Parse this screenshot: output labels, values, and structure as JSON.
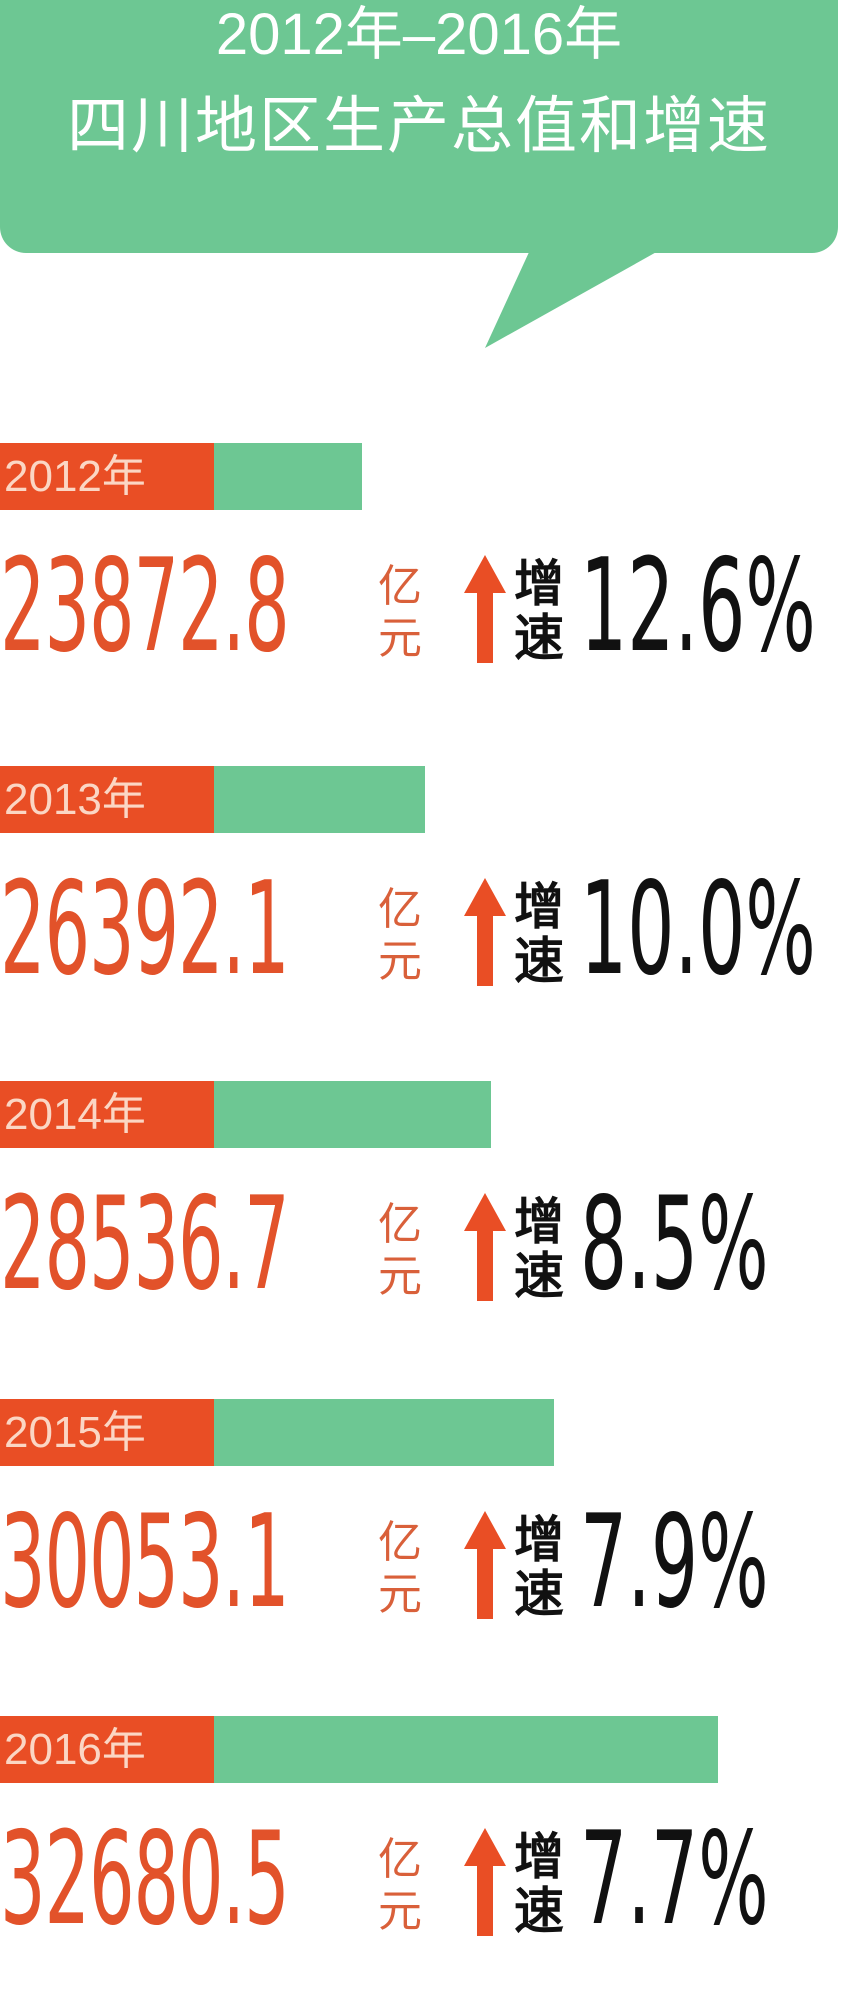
{
  "header": {
    "title_line1": "2012年–2016年",
    "title_line2": "四川地区生产总值和增速"
  },
  "colors": {
    "green": "#6dc793",
    "orange": "#e94e25",
    "text_dark": "#111111"
  },
  "chart_data": {
    "type": "bar",
    "title": "2012年–2016年 四川地区生产总值和增速",
    "categories": [
      "2012年",
      "2013年",
      "2014年",
      "2015年",
      "2016年"
    ],
    "series": [
      {
        "values": [
          23872.8,
          26392.1,
          28536.7,
          30053.1,
          32680.5
        ],
        "unit": "亿元"
      },
      {
        "values": [
          12.6,
          10.0,
          8.5,
          7.9,
          7.7
        ],
        "unit": "%",
        "label": "增速"
      }
    ]
  },
  "rows": [
    {
      "year": "2012年",
      "value": "23872.8",
      "unit_top": "亿",
      "unit_bottom": "元",
      "growth_top": "增",
      "growth_bottom": "速",
      "growth": "12.6%"
    },
    {
      "year": "2013年",
      "value": "26392.1",
      "unit_top": "亿",
      "unit_bottom": "元",
      "growth_top": "增",
      "growth_bottom": "速",
      "growth": "10.0%"
    },
    {
      "year": "2014年",
      "value": "28536.7",
      "unit_top": "亿",
      "unit_bottom": "元",
      "growth_top": "增",
      "growth_bottom": "速",
      "growth": "8.5%"
    },
    {
      "year": "2015年",
      "value": "30053.1",
      "unit_top": "亿",
      "unit_bottom": "元",
      "growth_top": "增",
      "growth_bottom": "速",
      "growth": "7.9%"
    },
    {
      "year": "2016年",
      "value": "32680.5",
      "unit_top": "亿",
      "unit_bottom": "元",
      "growth_top": "增",
      "growth_bottom": "速",
      "growth": "7.7%"
    }
  ]
}
